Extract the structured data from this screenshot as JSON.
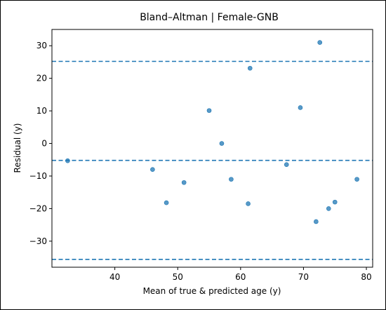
{
  "chart_data": {
    "type": "scatter",
    "title": "Bland–Altman | Female-GNB",
    "xlabel": "Mean of true & predicted age (y)",
    "ylabel": "Residual (y)",
    "xlim": [
      30,
      81
    ],
    "ylim": [
      -38,
      35
    ],
    "xticks": [
      40,
      50,
      60,
      70,
      80
    ],
    "yticks": [
      -30,
      -20,
      -10,
      0,
      10,
      20,
      30
    ],
    "xtick_labels": [
      "40",
      "50",
      "60",
      "70",
      "80"
    ],
    "ytick_labels": [
      "−30",
      "−20",
      "−10",
      "0",
      "10",
      "20",
      "30"
    ],
    "grid": false,
    "points": [
      {
        "x": 32.5,
        "y": -5.3
      },
      {
        "x": 46.0,
        "y": -8.0
      },
      {
        "x": 48.2,
        "y": -18.2
      },
      {
        "x": 51.0,
        "y": -12.0
      },
      {
        "x": 55.0,
        "y": 10.1
      },
      {
        "x": 57.0,
        "y": 0.0
      },
      {
        "x": 58.5,
        "y": -11.0
      },
      {
        "x": 61.2,
        "y": -18.5
      },
      {
        "x": 61.5,
        "y": 23.1
      },
      {
        "x": 67.3,
        "y": -6.5
      },
      {
        "x": 69.5,
        "y": 11.0
      },
      {
        "x": 72.0,
        "y": -24.0
      },
      {
        "x": 72.6,
        "y": 31.0
      },
      {
        "x": 74.0,
        "y": -20.0
      },
      {
        "x": 75.0,
        "y": -18.0
      },
      {
        "x": 78.5,
        "y": -11.0
      }
    ],
    "reference_lines": [
      {
        "y": 25.2
      },
      {
        "y": -5.2
      },
      {
        "y": -35.6
      }
    ],
    "colors": {
      "point": "#1f77b4",
      "line": "#1f77b4"
    }
  }
}
